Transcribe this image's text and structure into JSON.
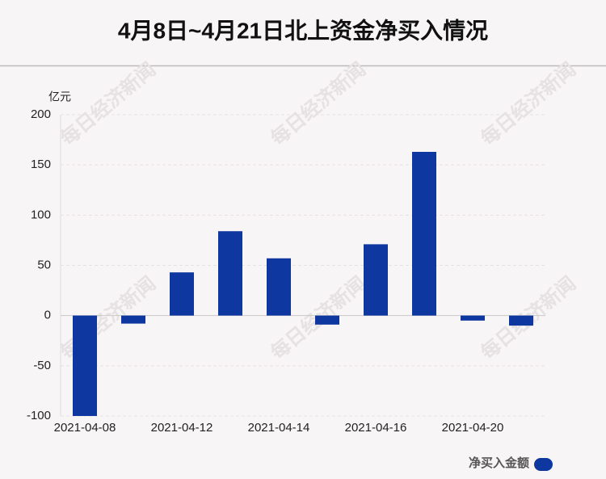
{
  "chart_data": {
    "type": "bar",
    "title": "4月8日~4月21日北上资金净买入情况",
    "y_label": "亿元",
    "watermark": "每日经济新闻",
    "categories": [
      "2021-04-08",
      null,
      "2021-04-12",
      null,
      "2021-04-14",
      null,
      "2021-04-16",
      null,
      "2021-04-20",
      null
    ],
    "series": [
      {
        "name": "净买入金额",
        "color": "#0f37a0",
        "values": [
          -100,
          -8,
          43,
          84,
          57,
          -9,
          71,
          163,
          -5,
          -10
        ]
      }
    ],
    "ylim": [
      -100,
      200
    ],
    "yticks": [
      -100,
      -50,
      0,
      50,
      100,
      150,
      200
    ],
    "grid": true
  }
}
